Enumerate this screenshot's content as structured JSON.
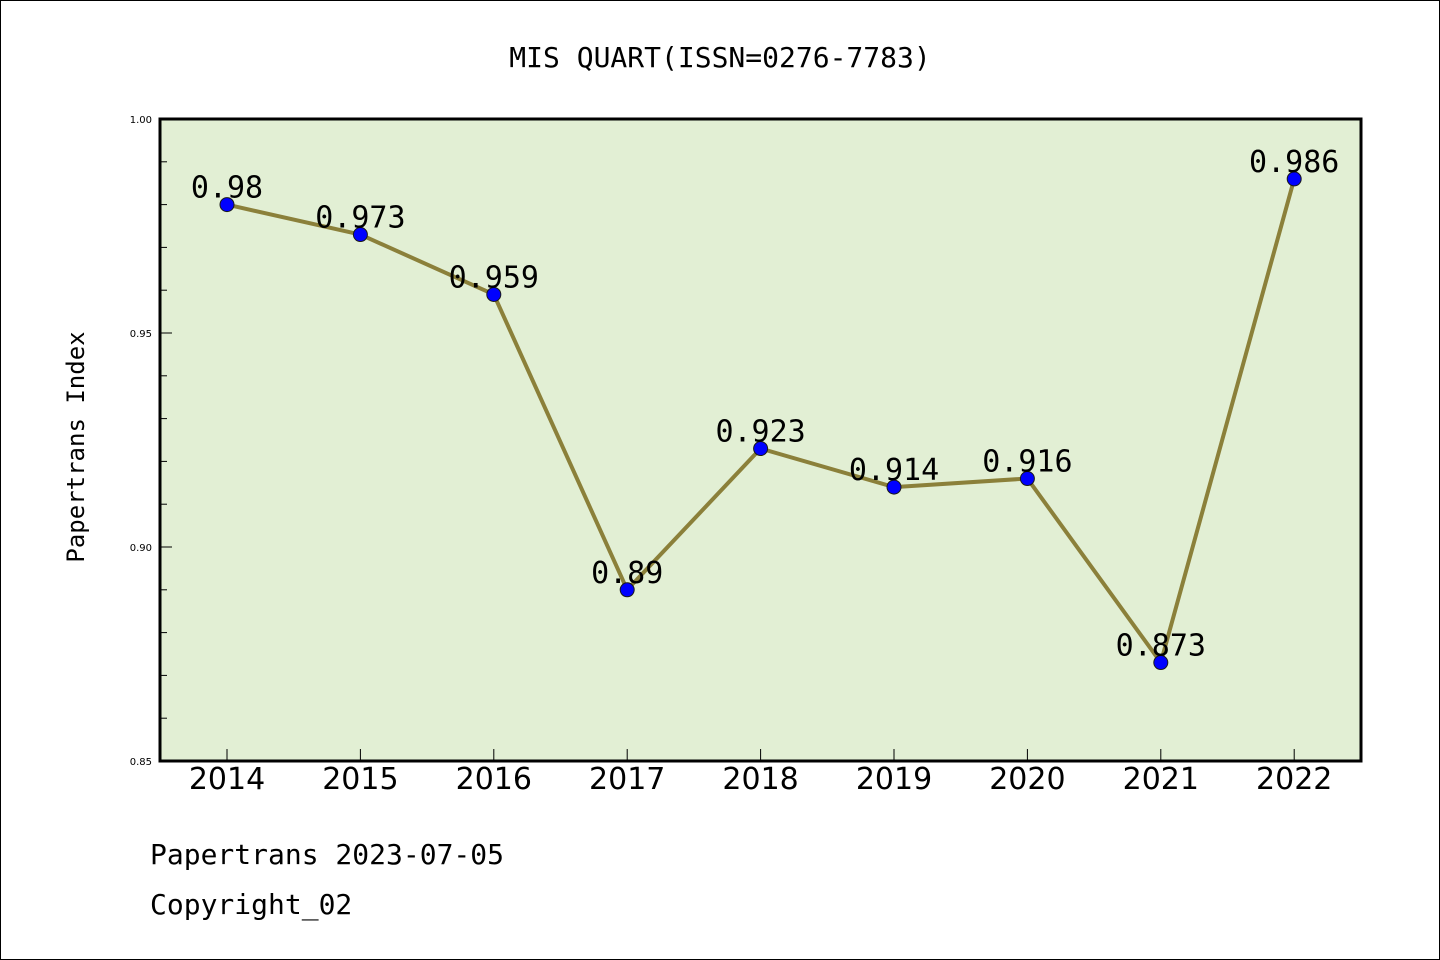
{
  "chart_data": {
    "type": "line",
    "title": "MIS QUART(ISSN=0276-7783)",
    "xlabel": "",
    "ylabel": "Papertrans Index",
    "categories": [
      "2014",
      "2015",
      "2016",
      "2017",
      "2018",
      "2019",
      "2020",
      "2021",
      "2022"
    ],
    "series": [
      {
        "values": [
          0.98,
          0.973,
          0.959,
          0.89,
          0.923,
          0.914,
          0.916,
          0.873,
          0.986
        ],
        "labels": [
          "0.98",
          "0.973",
          "0.959",
          "0.89",
          "0.923",
          "0.914",
          "0.916",
          "0.873",
          "0.986"
        ],
        "line_color": "#8b803a",
        "marker_color": "#0000ff"
      }
    ],
    "ylim": [
      0.85,
      1.0
    ],
    "yticks": [
      "0.85",
      "0.90",
      "0.95",
      "1.00"
    ],
    "ytick_values": [
      0.85,
      0.9,
      0.95,
      1.0
    ],
    "y_minor_step": 0.01,
    "plot_background": "#e2efd4",
    "grid": false,
    "legend": "none"
  },
  "footer": {
    "line1": "Papertrans 2023-07-05",
    "line2": "Copyright_02"
  }
}
